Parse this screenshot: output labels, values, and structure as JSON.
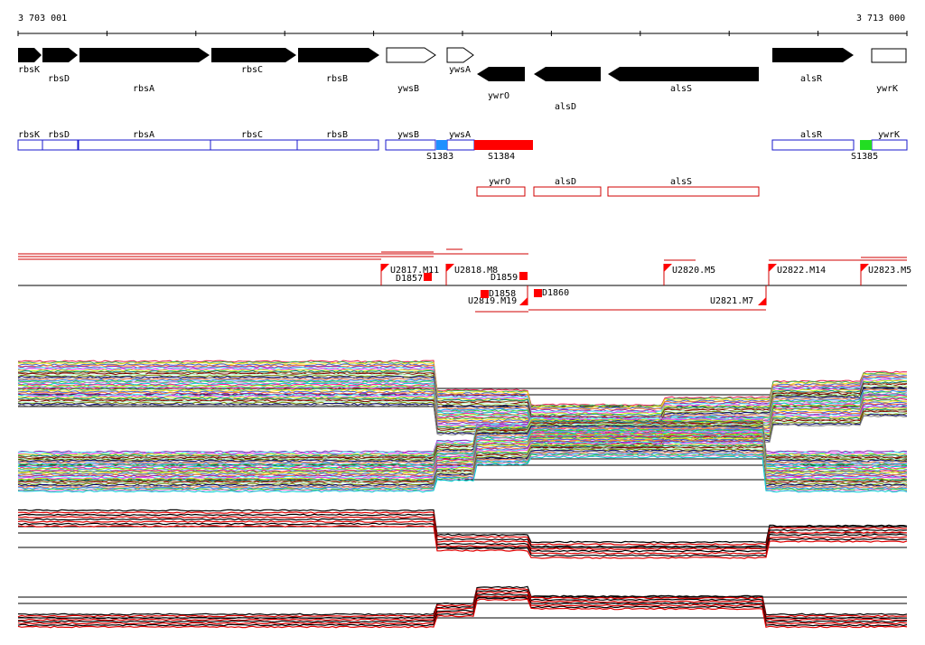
{
  "ruler": {
    "start_label": "3 703 001",
    "end_label": "3 713 000"
  },
  "colors": {
    "gene_fill": "#000000",
    "gene_outline": "#000000",
    "segment_blue": "#1a1acc",
    "segment_red": "#e00000",
    "promoter_red": "#ff0000",
    "probe_line": "#d00000",
    "track_black": "#000000"
  },
  "genes_forward": [
    {
      "name": "rbsK",
      "filled": true
    },
    {
      "name": "rbsD",
      "filled": true
    },
    {
      "name": "rbsA",
      "filled": true
    },
    {
      "name": "rbsC",
      "filled": true
    },
    {
      "name": "rbsB",
      "filled": true
    },
    {
      "name": "ywsB",
      "filled": false
    },
    {
      "name": "ywsA",
      "filled": false
    }
  ],
  "genes_reverse": [
    {
      "name": "ywrO",
      "filled": true
    },
    {
      "name": "alsD",
      "filled": true
    },
    {
      "name": "alsS",
      "filled": true
    }
  ],
  "genes_forward_right": [
    {
      "name": "alsR",
      "filled": true
    },
    {
      "name": "ywrK",
      "filled": false
    }
  ],
  "segments_forward": [
    {
      "label": "rbsK"
    },
    {
      "label": "rbsD"
    },
    {
      "label": "rbsA"
    },
    {
      "label": "rbsC"
    },
    {
      "label": "rbsB"
    },
    {
      "label": "ywsB"
    },
    {
      "label": "ywsA"
    },
    {
      "label": "alsR"
    },
    {
      "label": "ywrK"
    }
  ],
  "segments_reverse": [
    {
      "label": "ywrO"
    },
    {
      "label": "alsD"
    },
    {
      "label": "alsS"
    }
  ],
  "small_features": [
    {
      "label": "S1383",
      "color": "#1e90ff"
    },
    {
      "label": "S1384",
      "color": "#ff0000"
    },
    {
      "label": "S1385",
      "color": "#22dd22"
    }
  ],
  "transcription_units": [
    {
      "label": "U2817.M11"
    },
    {
      "label": "U2818.M8"
    },
    {
      "label": "U2820.M5"
    },
    {
      "label": "U2822.M14"
    },
    {
      "label": "U2823.M5"
    },
    {
      "label": "U2819.M19"
    },
    {
      "label": "U2821.M7"
    }
  ],
  "downshifts": [
    {
      "label": "D1857"
    },
    {
      "label": "D1859"
    },
    {
      "label": "D1858"
    },
    {
      "label": "D1860"
    }
  ]
}
